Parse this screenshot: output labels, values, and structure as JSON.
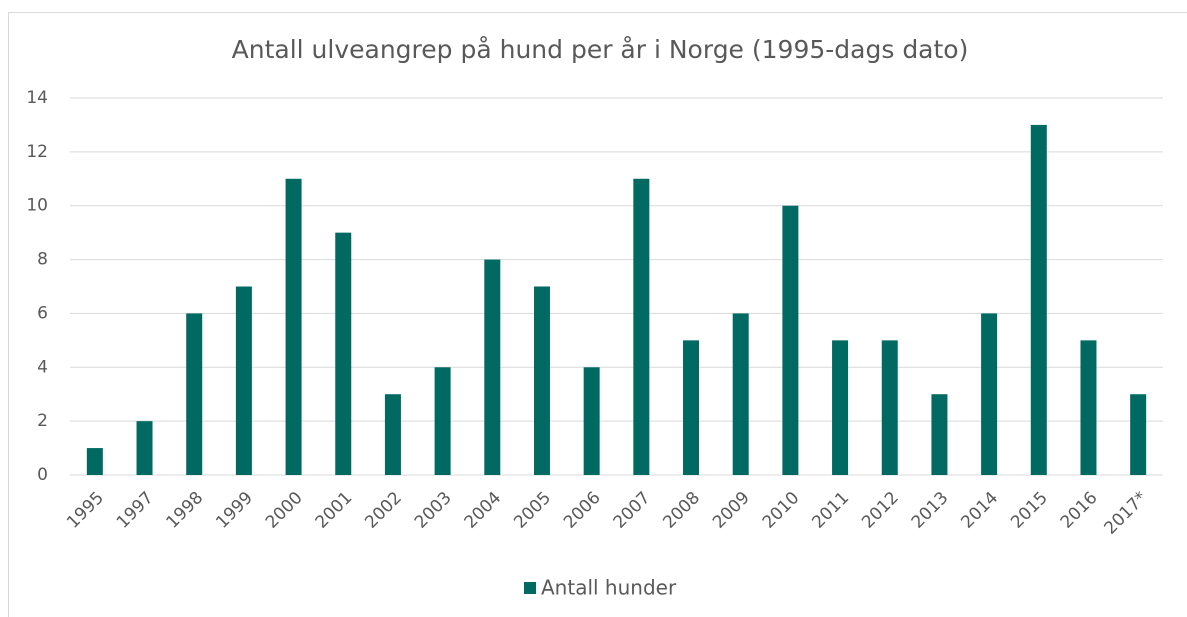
{
  "chart_data": {
    "type": "bar",
    "title": "Antall ulveangrep på hund per år i Norge (1995-dags dato)",
    "categories": [
      "1995",
      "1997",
      "1998",
      "1999",
      "2000",
      "2001",
      "2002",
      "2003",
      "2004",
      "2005",
      "2006",
      "2007",
      "2008",
      "2009",
      "2010",
      "2011",
      "2012",
      "2013",
      "2014",
      "2015",
      "2016",
      "2017*"
    ],
    "series": [
      {
        "name": "Antall hunder",
        "color": "#006a62",
        "values": [
          1,
          2,
          6,
          7,
          11,
          9,
          3,
          4,
          8,
          7,
          4,
          11,
          5,
          6,
          10,
          5,
          5,
          3,
          6,
          13,
          5,
          3
        ]
      }
    ],
    "ylim": [
      0,
      14
    ],
    "yticks": [
      0,
      2,
      4,
      6,
      8,
      10,
      12,
      14
    ],
    "grid": true,
    "legend": "bottom"
  }
}
